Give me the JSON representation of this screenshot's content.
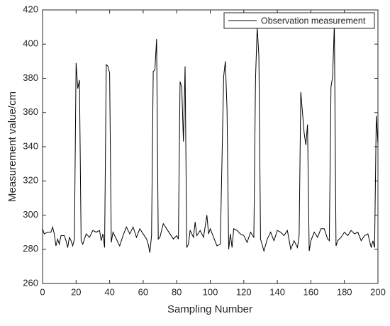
{
  "chart_data": {
    "type": "line",
    "xlabel": "Sampling Number",
    "ylabel": "Measurement value/cm",
    "xlim": [
      0,
      200
    ],
    "xticks": [
      0,
      20,
      40,
      60,
      80,
      100,
      120,
      140,
      160,
      180,
      200
    ],
    "ylim": [
      260,
      420
    ],
    "yticks": [
      260,
      280,
      300,
      320,
      340,
      360,
      380,
      400,
      420
    ],
    "legend": "upper right",
    "x": [
      0,
      1,
      3,
      5,
      6,
      7,
      8,
      9,
      10,
      11,
      13,
      14,
      15,
      16,
      17,
      18,
      19,
      20,
      21,
      22,
      23,
      24,
      25,
      26,
      28,
      30,
      32,
      34,
      35,
      36,
      37,
      38,
      39,
      40,
      41,
      42,
      44,
      46,
      48,
      50,
      52,
      54,
      56,
      58,
      60,
      62,
      63,
      64,
      65,
      66,
      67,
      68,
      69,
      70,
      72,
      74,
      76,
      78,
      80,
      81,
      82,
      83,
      84,
      85,
      86,
      87,
      88,
      90,
      91,
      92,
      94,
      96,
      98,
      99,
      100,
      102,
      104,
      106,
      108,
      109,
      110,
      111,
      112,
      113,
      114,
      116,
      118,
      120,
      122,
      124,
      126,
      127,
      128,
      129,
      130,
      132,
      134,
      136,
      138,
      140,
      142,
      144,
      146,
      148,
      150,
      152,
      153,
      154,
      155,
      156,
      157,
      158,
      159,
      160,
      162,
      164,
      166,
      168,
      170,
      171,
      172,
      173,
      174,
      175,
      176,
      178,
      180,
      182,
      184,
      186,
      188,
      190,
      192,
      194,
      196,
      197,
      198,
      199,
      200
    ],
    "series": [
      {
        "name": "Observation measurement",
        "color": "#000000",
        "values": [
          292,
          289,
          290,
          290,
          293,
          289,
          282,
          286,
          283,
          288,
          288,
          285,
          281,
          287,
          285,
          282,
          286,
          389,
          374,
          379,
          285,
          283,
          286,
          289,
          287,
          291,
          290,
          291,
          285,
          289,
          281,
          388,
          387,
          383,
          284,
          290,
          286,
          282,
          288,
          293,
          289,
          293,
          287,
          292,
          289,
          286,
          283,
          278,
          288,
          384,
          385,
          403,
          286,
          287,
          295,
          292,
          289,
          286,
          288,
          286,
          378,
          375,
          343,
          387,
          281,
          283,
          291,
          287,
          296,
          288,
          291,
          287,
          300,
          289,
          292,
          287,
          282,
          283,
          381,
          390,
          362,
          280,
          289,
          281,
          292,
          291,
          289,
          288,
          284,
          290,
          287,
          380,
          410,
          393,
          286,
          279,
          286,
          290,
          285,
          291,
          290,
          288,
          291,
          280,
          285,
          281,
          288,
          372,
          360,
          348,
          341,
          353,
          279,
          285,
          290,
          287,
          292,
          292,
          286,
          285,
          375,
          381,
          412,
          282,
          285,
          287,
          290,
          288,
          291,
          289,
          290,
          285,
          288,
          289,
          281,
          285,
          281,
          358,
          342
        ]
      }
    ]
  }
}
